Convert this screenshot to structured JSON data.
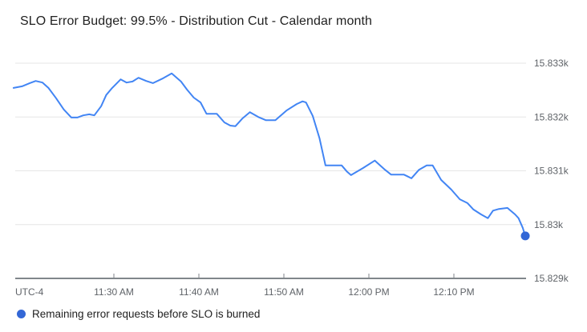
{
  "header": {
    "title": "SLO Error Budget: 99.5% - Distribution Cut - Calendar month"
  },
  "legend": {
    "label": "Remaining error requests before SLO is burned",
    "marker_color": "#3367d6"
  },
  "colors": {
    "background": "#ffffff",
    "series_line": "#4285f4",
    "series_marker": "#3367d6",
    "gridline": "#e6e6e6",
    "axis_line": "#80868b",
    "tick_mark": "#80868b",
    "axis_text": "#5f6368",
    "title_text": "#212121",
    "legend_text": "#212121"
  },
  "chart_data": {
    "type": "line",
    "title": "SLO Error Budget: 99.5% - Distribution Cut - Calendar month",
    "grid": true,
    "legend_position": "bottom-left",
    "x_axis": {
      "timezone_label": "UTC-4",
      "unit": "minutes relative to 11:30 AM",
      "range": [
        -11.8,
        48.4
      ],
      "ticks": [
        {
          "t": 0,
          "label": "11:30 AM"
        },
        {
          "t": 10,
          "label": "11:40 AM"
        },
        {
          "t": 20,
          "label": "11:50 AM"
        },
        {
          "t": 30,
          "label": "12:00 PM"
        },
        {
          "t": 40,
          "label": "12:10 PM"
        }
      ]
    },
    "y_axis": {
      "unit": "requests",
      "range": [
        15829,
        15833
      ],
      "ticks": [
        {
          "v": 15833,
          "label": "15.833k"
        },
        {
          "v": 15832,
          "label": "15.832k"
        },
        {
          "v": 15831,
          "label": "15.831k"
        },
        {
          "v": 15830,
          "label": "15.83k"
        },
        {
          "v": 15829,
          "label": "15.829k"
        }
      ]
    },
    "series": [
      {
        "name": "Remaining error requests before SLO is burned",
        "color": "#4285f4",
        "end_marker": true,
        "end_marker_color": "#3367d6",
        "points": [
          [
            -11.8,
            15832.54
          ],
          [
            -10.8,
            15832.57
          ],
          [
            -9.9,
            15832.63
          ],
          [
            -9.2,
            15832.67
          ],
          [
            -8.4,
            15832.64
          ],
          [
            -7.7,
            15832.54
          ],
          [
            -6.8,
            15832.35
          ],
          [
            -5.9,
            15832.14
          ],
          [
            -5.0,
            15831.99
          ],
          [
            -4.3,
            15831.99
          ],
          [
            -3.6,
            15832.03
          ],
          [
            -2.9,
            15832.05
          ],
          [
            -2.3,
            15832.03
          ],
          [
            -1.5,
            15832.2
          ],
          [
            -0.9,
            15832.41
          ],
          [
            -0.2,
            15832.54
          ],
          [
            0.8,
            15832.7
          ],
          [
            1.5,
            15832.64
          ],
          [
            2.2,
            15832.66
          ],
          [
            2.9,
            15832.73
          ],
          [
            3.8,
            15832.67
          ],
          [
            4.6,
            15832.63
          ],
          [
            5.8,
            15832.72
          ],
          [
            6.8,
            15832.81
          ],
          [
            7.9,
            15832.66
          ],
          [
            8.6,
            15832.51
          ],
          [
            9.4,
            15832.36
          ],
          [
            10.2,
            15832.27
          ],
          [
            10.9,
            15832.06
          ],
          [
            12.1,
            15832.06
          ],
          [
            13.0,
            15831.9
          ],
          [
            13.7,
            15831.84
          ],
          [
            14.3,
            15831.83
          ],
          [
            15.1,
            15831.97
          ],
          [
            16.0,
            15832.09
          ],
          [
            17.0,
            15832.0
          ],
          [
            17.9,
            15831.94
          ],
          [
            19.0,
            15831.94
          ],
          [
            20.3,
            15832.12
          ],
          [
            21.5,
            15832.24
          ],
          [
            22.2,
            15832.29
          ],
          [
            22.6,
            15832.27
          ],
          [
            23.4,
            15832.02
          ],
          [
            24.2,
            15831.6
          ],
          [
            24.9,
            15831.1
          ],
          [
            26.8,
            15831.1
          ],
          [
            27.4,
            15830.99
          ],
          [
            27.9,
            15830.92
          ],
          [
            29.3,
            15831.05
          ],
          [
            30.7,
            15831.19
          ],
          [
            31.9,
            15831.02
          ],
          [
            32.6,
            15830.93
          ],
          [
            34.1,
            15830.93
          ],
          [
            34.5,
            15830.9
          ],
          [
            35.0,
            15830.86
          ],
          [
            35.9,
            15831.02
          ],
          [
            36.8,
            15831.1
          ],
          [
            37.5,
            15831.1
          ],
          [
            38.5,
            15830.83
          ],
          [
            39.7,
            15830.65
          ],
          [
            40.7,
            15830.47
          ],
          [
            41.6,
            15830.4
          ],
          [
            42.3,
            15830.28
          ],
          [
            43.2,
            15830.19
          ],
          [
            44.0,
            15830.12
          ],
          [
            44.6,
            15830.26
          ],
          [
            45.3,
            15830.29
          ],
          [
            46.3,
            15830.31
          ],
          [
            47.2,
            15830.19
          ],
          [
            47.6,
            15830.12
          ],
          [
            48.1,
            15829.94
          ],
          [
            48.4,
            15829.79
          ]
        ]
      }
    ]
  }
}
